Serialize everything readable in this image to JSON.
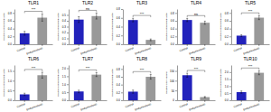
{
  "chart_data": [
    {
      "type": "bar",
      "title": "TLR1",
      "ylabel": "Relative expression/B-actin",
      "categories": [
        "Control",
        "Endometriosis"
      ],
      "values": [
        0.28,
        0.68
      ],
      "errors": [
        0.05,
        0.09
      ],
      "colors": [
        "#2222bb",
        "#999999"
      ],
      "annotations": [
        "***"
      ],
      "ylim": [
        0,
        0.9
      ],
      "yticks": [
        {
          "value": 0.0,
          "label": "0.0"
        },
        0.2,
        0.4,
        0.6,
        0.8
      ]
    },
    {
      "type": "bar",
      "title": "TLR2",
      "ylabel": "Relative expression/B-actin",
      "categories": [
        "Control",
        "Endometriosis"
      ],
      "values": [
        0.42,
        0.48
      ],
      "errors": [
        0.05,
        0.05
      ],
      "colors": [
        "#2222bb",
        "#999999"
      ],
      "annotations": [
        "ns"
      ],
      "ylim": [
        0,
        0.6
      ],
      "yticks": [
        {
          "value": 0.0,
          "label": "0.0"
        },
        0.1,
        0.2,
        0.3,
        0.4,
        0.5
      ]
    },
    {
      "type": "bar",
      "title": "TLR3",
      "ylabel": "Relative expression/B-actin",
      "categories": [
        "Control",
        "Endometriosis"
      ],
      "values": [
        0.55,
        0.1
      ],
      "errors": [
        0.04,
        0.02
      ],
      "colors": [
        "#2222bb",
        "#999999"
      ],
      "annotations": [
        "***"
      ],
      "ylim": [
        0,
        0.8
      ],
      "yticks": [
        {
          "value": 0.0,
          "label": "0.0"
        },
        0.2,
        0.4,
        0.6,
        0.8
      ]
    },
    {
      "type": "bar",
      "title": "TLR4",
      "ylabel": "Relative expression/B-actin",
      "categories": [
        "Control",
        "Endometriosis"
      ],
      "values": [
        0.62,
        0.55
      ],
      "errors": [
        0.04,
        0.04
      ],
      "colors": [
        "#2222bb",
        "#999999"
      ],
      "annotations": [
        "ns"
      ],
      "ylim": [
        0,
        0.9
      ],
      "yticks": [
        {
          "value": 0.0,
          "label": "0.0"
        },
        0.2,
        0.4,
        0.6,
        0.8
      ]
    },
    {
      "type": "bar",
      "title": "TLR5",
      "ylabel": "Relative expression/B-actin",
      "categories": [
        "Control",
        "Endometriosis"
      ],
      "values": [
        0.22,
        0.68
      ],
      "errors": [
        0.025,
        0.05
      ],
      "colors": [
        "#2222bb",
        "#999999"
      ],
      "annotations": [
        "***"
      ],
      "ylim": [
        0,
        0.9
      ],
      "yticks": [
        {
          "value": 0.0,
          "label": "0.0"
        },
        0.2,
        0.4,
        0.6,
        0.8
      ]
    },
    {
      "type": "bar",
      "title": "TLR6",
      "ylabel": "Relative expression/B-actin",
      "categories": [
        "Control",
        "Endometriosis"
      ],
      "values": [
        0.3,
        1.28
      ],
      "errors": [
        0.06,
        0.15
      ],
      "colors": [
        "#2222bb",
        "#999999"
      ],
      "annotations": [
        "***"
      ],
      "ylim": [
        0,
        1.8
      ],
      "yticks": [
        {
          "value": 0.0,
          "label": "0.0"
        },
        0.5,
        {
          "value": 1.0,
          "label": "1.0"
        },
        1.5
      ]
    },
    {
      "type": "bar",
      "title": "TLR7",
      "ylabel": "Relative expression/B-actin",
      "categories": [
        "Control",
        "Endometriosis"
      ],
      "values": [
        0.55,
        1.6
      ],
      "errors": [
        0.08,
        0.12
      ],
      "colors": [
        "#2222bb",
        "#999999"
      ],
      "annotations": [
        "***"
      ],
      "ylim": [
        0,
        2.2
      ],
      "yticks": [
        {
          "value": 0.0,
          "label": "0.0"
        },
        0.5,
        {
          "value": 1.0,
          "label": "1.0"
        },
        1.5,
        {
          "value": 2.0,
          "label": "2.0"
        }
      ]
    },
    {
      "type": "bar",
      "title": "TLR8",
      "ylabel": "Relative expression/B-actin",
      "categories": [
        "Control",
        "Endometriosis"
      ],
      "values": [
        0.22,
        0.6
      ],
      "errors": [
        0.04,
        0.06
      ],
      "colors": [
        "#2222bb",
        "#999999"
      ],
      "annotations": [
        "***"
      ],
      "ylim": [
        0,
        0.9
      ],
      "yticks": [
        {
          "value": 0.0,
          "label": "0.0"
        },
        0.2,
        0.4,
        0.6,
        0.8
      ]
    },
    {
      "type": "bar",
      "title": "TLR9",
      "ylabel": "Relative Copy number",
      "categories": [
        "Control",
        "Endometriosis"
      ],
      "values": [
        128,
        16
      ],
      "errors": [
        10,
        3
      ],
      "colors": [
        "#2222bb",
        "#999999"
      ],
      "annotations": [
        "***"
      ],
      "ylim": [
        0,
        180
      ],
      "yticks": [
        0,
        50,
        100,
        150
      ]
    },
    {
      "type": "bar",
      "title": "TLR10",
      "ylabel": "Relative expression/B-actin",
      "categories": [
        "Control",
        "Endometriosis"
      ],
      "values": [
        0.58,
        1.95
      ],
      "errors": [
        0.08,
        0.14
      ],
      "colors": [
        "#2222bb",
        "#999999"
      ],
      "annotations": [
        "***"
      ],
      "ylim": [
        0,
        2.5
      ],
      "yticks": [
        {
          "value": 0.0,
          "label": "0.0"
        },
        0.5,
        {
          "value": 1.0,
          "label": "1.0"
        },
        1.5,
        {
          "value": 2.0,
          "label": "2.0"
        }
      ]
    }
  ]
}
